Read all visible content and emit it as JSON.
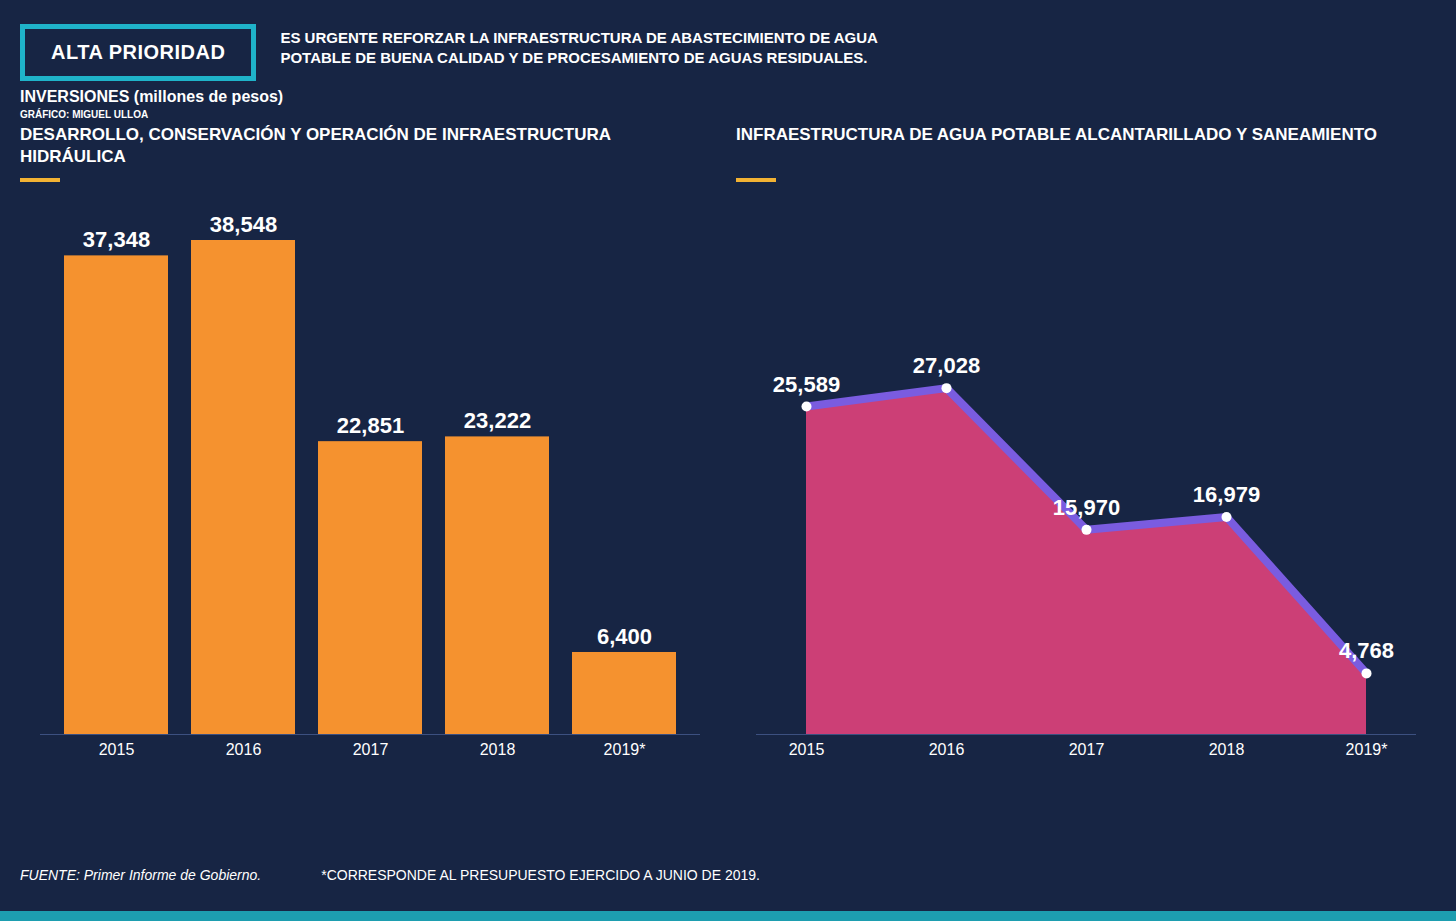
{
  "badge": "ALTA PRIORIDAD",
  "headline": "ES URGENTE REFORZAR LA INFRAESTRUCTURA DE ABASTECIMIENTO DE AGUA POTABLE DE BUENA CALIDAD Y DE PROCESAMIENTO DE AGUAS RESIDUALES.",
  "title": "INVERSIONES (millones de pesos)",
  "credit": "GRÁFICO: MIGUEL ULLOA",
  "source": "FUENTE: Primer Informe de Gobierno.",
  "footnote": "*CORRESPONDE AL PRESUPUESTO EJERCIDO A JUNIO DE 2019.",
  "chart_data": [
    {
      "type": "bar",
      "title": "DESARROLLO, CONSERVACIÓN Y OPERACIÓN DE INFRAESTRUCTURA HIDRÁULICA",
      "categories": [
        "2015",
        "2016",
        "2017",
        "2018",
        "2019*"
      ],
      "values": [
        37348,
        38548,
        22851,
        23222,
        6400
      ],
      "value_labels": [
        "37,348",
        "38,548",
        "22,851",
        "23,222",
        "6,400"
      ],
      "color": "#f5922f",
      "data_labels": true,
      "tick_labels": "x"
    },
    {
      "type": "area",
      "title": "INFRAESTRUCTURA DE AGUA POTABLE ALCANTARILLADO Y SANEAMIENTO",
      "categories": [
        "2015",
        "2016",
        "2017",
        "2018",
        "2019*"
      ],
      "values": [
        25589,
        27028,
        15970,
        16979,
        4768
      ],
      "value_labels": [
        "25,589",
        "27,028",
        "15,970",
        "16,979",
        "4,768"
      ],
      "color": "#e0437c",
      "data_labels": true,
      "tick_labels": "x"
    }
  ]
}
